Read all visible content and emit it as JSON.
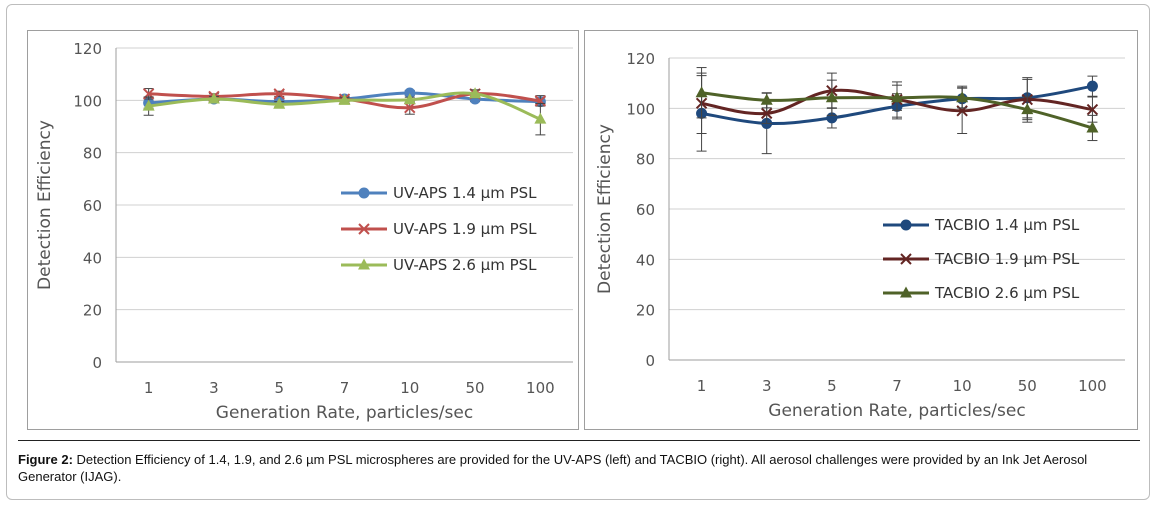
{
  "charts": [
    {
      "type": "line",
      "categories": [
        "1",
        "3",
        "5",
        "7",
        "10",
        "50",
        "100"
      ],
      "ylim": [
        0,
        120
      ],
      "yticks": [
        0,
        20,
        40,
        60,
        80,
        100,
        120
      ],
      "xlabel": "Generation Rate, particles/sec",
      "ylabel": "Detection Efficiency",
      "grid": "horizontal",
      "legend_position": "right-center",
      "series": [
        {
          "name": "UV-APS 1.4 µm PSL",
          "color": "#4f81bd",
          "marker": "circle",
          "values": [
            99,
            100.5,
            99.5,
            100.5,
            102.8,
            100.5,
            99.5
          ],
          "err": [
            2,
            1,
            1,
            0.5,
            1,
            1,
            1.5
          ]
        },
        {
          "name": "UV-APS 1.9 µm PSL",
          "color": "#c0504d",
          "marker": "x",
          "values": [
            102.5,
            101.5,
            102.5,
            100.5,
            97.2,
            102.5,
            99.8
          ],
          "err": [
            2,
            1,
            1,
            1,
            2.5,
            1.5,
            2
          ]
        },
        {
          "name": "UV-APS 2.6 µm PSL",
          "color": "#9bbb59",
          "marker": "triangle",
          "values": [
            97.8,
            100.5,
            98.5,
            100,
            100.2,
            102.5,
            92.8
          ],
          "err": [
            3.5,
            1,
            1,
            1,
            1,
            1.5,
            6
          ]
        }
      ]
    },
    {
      "type": "line",
      "categories": [
        "1",
        "3",
        "5",
        "7",
        "10",
        "50",
        "100"
      ],
      "ylim": [
        0,
        120
      ],
      "yticks": [
        0,
        20,
        40,
        60,
        80,
        100,
        120
      ],
      "xlabel": "Generation Rate, particles/sec",
      "ylabel": "Detection Efficiency",
      "grid": "horizontal",
      "legend_position": "right-center",
      "series": [
        {
          "name": "TACBIO 1.4 µm PSL",
          "color": "#1f497d",
          "marker": "circle",
          "values": [
            98,
            94,
            96.2,
            100.8,
            103.8,
            104.2,
            108.8
          ],
          "err": [
            15,
            12,
            4,
            5,
            5,
            8,
            4
          ]
        },
        {
          "name": "TACBIO 1.9 µm PSL",
          "color": "#632523",
          "marker": "x",
          "values": [
            102,
            98,
            107,
            103.5,
            99,
            103.5,
            99.5
          ],
          "err": [
            12,
            4,
            7,
            7,
            9,
            8,
            5
          ]
        },
        {
          "name": "TACBIO 2.6 µm PSL",
          "color": "#4f6228",
          "marker": "triangle",
          "values": [
            106.2,
            103.2,
            104.2,
            104.2,
            104.2,
            99.5,
            92.2
          ],
          "err": [
            10,
            3,
            7,
            5,
            4,
            5,
            5
          ]
        }
      ]
    }
  ],
  "caption": {
    "label": "Figure 2:",
    "text": " Detection Efficiency of 1.4, 1.9, and 2.6 µm PSL microspheres are provided for the UV-APS (left) and TACBIO (right).  All aerosol challenges were provided by an Ink Jet Aerosol Generator (IJAG)."
  }
}
